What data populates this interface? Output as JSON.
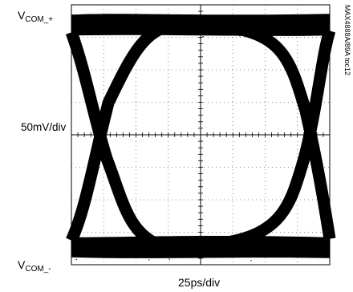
{
  "chart_data": {
    "type": "eye-diagram",
    "x_scale_label": "25ps/div",
    "y_scale_label": "50mV/div",
    "y_top_label": {
      "main": "V",
      "sub": "COM_+"
    },
    "y_bottom_label": {
      "main": "V",
      "sub": "COM_-"
    },
    "figure_code": "MAX4888A/89A toc12",
    "grid": true,
    "x_divisions": 8,
    "y_divisions": 8,
    "eye": {
      "high_level_div": 7.4,
      "low_level_div": 0.5,
      "crossing_left_div": 0.6,
      "crossing_right_div": 7.5,
      "crossing_level_div": 4.0
    },
    "trace_color": "#000000"
  }
}
